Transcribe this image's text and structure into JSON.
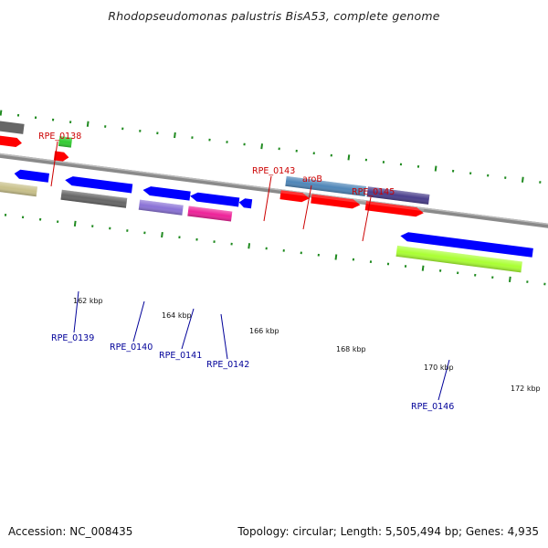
{
  "title": "Rhodopseudomonas palustris BisA53, complete genome",
  "footer": {
    "accession": "Accession: NC_008435",
    "summary": "Topology: circular; Length: 5,505,494 bp; Genes: 4,935"
  },
  "colors": {
    "backbone": "#8a8a8a",
    "tick": "#1f8a1f",
    "forward_label": "#cc0000",
    "reverse_label": "#000099"
  },
  "scale_labels": [
    "162 kbp",
    "164 kbp",
    "166 kbp",
    "168 kbp",
    "170 kbp",
    "172 kbp"
  ],
  "forward_gene_labels": [
    "RPE_0138",
    "RPE_0143",
    "aroB",
    "RPE_0145"
  ],
  "reverse_gene_labels": [
    "RPE_0139",
    "RPE_0140",
    "RPE_0141",
    "RPE_0142",
    "RPE_0146"
  ],
  "feature_colors": {
    "cds_forward": "#ff0000",
    "cds_reverse": "#0000ff",
    "gene_gray": "#666666",
    "gene_khaki": "#c8c08a",
    "gene_green": "#33cc33",
    "gene_steelblue": "#4f86b8",
    "gene_slate": "#4a3f8c",
    "gene_purple": "#8a72d6",
    "gene_pink": "#ee2299",
    "gene_lime": "#aaff33"
  }
}
